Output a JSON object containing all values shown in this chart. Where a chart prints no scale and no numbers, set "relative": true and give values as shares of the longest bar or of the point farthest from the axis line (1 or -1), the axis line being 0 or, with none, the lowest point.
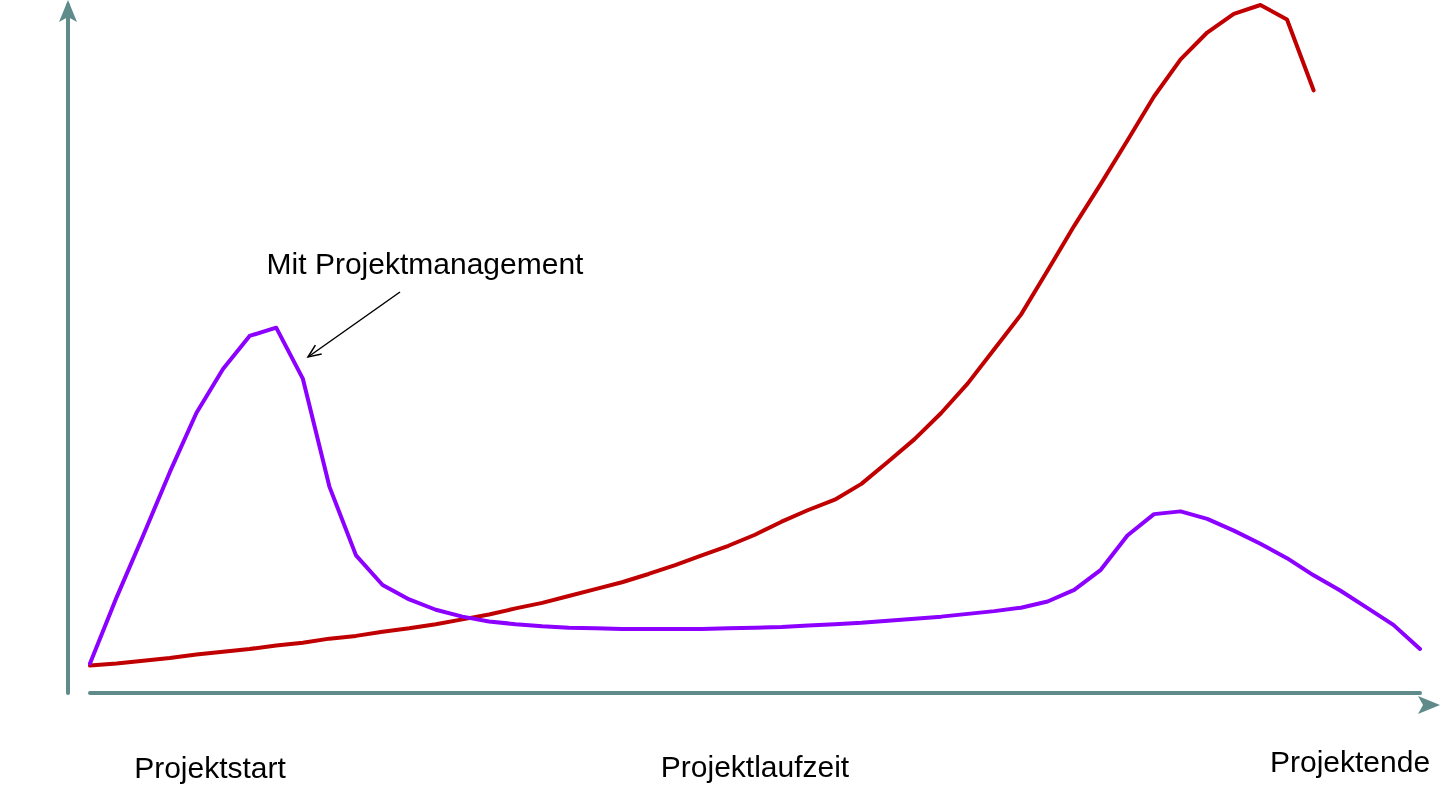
{
  "chart_data": {
    "type": "line",
    "relative": true,
    "xlabel": "Projektlaufzeit",
    "grid": false,
    "marker": "none",
    "line_style": "solid",
    "categories": [
      null,
      null,
      null,
      null,
      null,
      null,
      null,
      null,
      null,
      null,
      null,
      null,
      null,
      null,
      null,
      null,
      null,
      null,
      null,
      null,
      null,
      null,
      null,
      null,
      null,
      null,
      null,
      null,
      null,
      null,
      null,
      null,
      null,
      null,
      null,
      null,
      null,
      null,
      null,
      null,
      null,
      null,
      null,
      null,
      null,
      null,
      null,
      null,
      null,
      null,
      null
    ],
    "series": [
      {
        "color": "#c00000",
        "values": [
          0.04,
          0.043,
          0.047,
          0.051,
          0.056,
          0.06,
          0.064,
          0.069,
          0.073,
          0.079,
          0.083,
          0.089,
          0.094,
          0.1,
          0.107,
          0.114,
          0.123,
          0.131,
          0.141,
          0.151,
          0.161,
          0.173,
          0.186,
          0.2,
          0.214,
          0.23,
          0.249,
          0.266,
          0.281,
          0.304,
          0.336,
          0.369,
          0.407,
          0.45,
          0.5,
          0.55,
          0.614,
          0.679,
          0.74,
          0.803,
          0.867,
          0.921,
          0.96,
          0.987,
          1,
          0.979,
          0.876,
          null,
          null,
          null,
          null
        ]
      },
      {
        "color": "#8b00ff",
        "values": [
          0.043,
          0.139,
          0.229,
          0.321,
          0.407,
          0.471,
          0.519,
          0.531,
          0.457,
          0.3,
          0.2,
          0.157,
          0.136,
          0.121,
          0.111,
          0.104,
          0.1,
          0.097,
          0.095,
          0.094,
          0.093,
          0.093,
          0.093,
          0.093,
          0.094,
          0.095,
          0.096,
          0.098,
          0.1,
          0.102,
          0.105,
          0.108,
          0.111,
          0.115,
          0.119,
          0.124,
          0.133,
          0.15,
          0.179,
          0.229,
          0.26,
          0.264,
          0.253,
          0.236,
          0.217,
          0.196,
          0.171,
          0.149,
          0.124,
          0.099,
          0.064
        ]
      }
    ],
    "annotations": [
      "Mit Projektmanagement",
      "Projektstart",
      "Projektende"
    ]
  }
}
